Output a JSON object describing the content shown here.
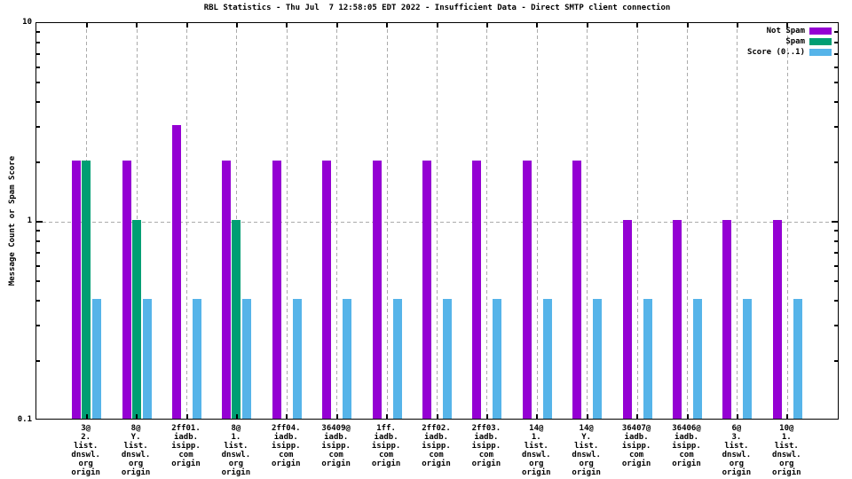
{
  "title": "RBL Statistics - Thu Jul  7 12:58:05 EDT 2022 - Insufficient Data - Direct SMTP client connection",
  "ylabel": "Message Count or Spam Score",
  "legend": [
    {
      "label": "Not Spam",
      "color": "#9400d3"
    },
    {
      "label": "Spam",
      "color": "#009e73"
    },
    {
      "label": "Score (0..1)",
      "color": "#56b4e9"
    }
  ],
  "chart_data": {
    "type": "bar",
    "yscale": "log",
    "ylim": [
      0.1,
      10
    ],
    "ytick_labels": [
      "10",
      "1",
      "0.1"
    ],
    "grid": true,
    "legend_position": "top-right",
    "categories": [
      [
        "3@",
        "2.",
        "list.",
        "dnswl.",
        "org",
        "origin"
      ],
      [
        "8@",
        "Y.",
        "list.",
        "dnswl.",
        "org",
        "origin"
      ],
      [
        "2ff01.",
        "iadb.",
        "isipp.",
        "com",
        "origin"
      ],
      [
        "8@",
        "1.",
        "list.",
        "dnswl.",
        "org",
        "origin"
      ],
      [
        "2ff04.",
        "iadb.",
        "isipp.",
        "com",
        "origin"
      ],
      [
        "36409@",
        "iadb.",
        "isipp.",
        "com",
        "origin"
      ],
      [
        "1ff.",
        "iadb.",
        "isipp.",
        "com",
        "origin"
      ],
      [
        "2ff02.",
        "iadb.",
        "isipp.",
        "com",
        "origin"
      ],
      [
        "2ff03.",
        "iadb.",
        "isipp.",
        "com",
        "origin"
      ],
      [
        "14@",
        "1.",
        "list.",
        "dnswl.",
        "org",
        "origin"
      ],
      [
        "14@",
        "Y.",
        "list.",
        "dnswl.",
        "org",
        "origin"
      ],
      [
        "36407@",
        "iadb.",
        "isipp.",
        "com",
        "origin"
      ],
      [
        "36406@",
        "iadb.",
        "isipp.",
        "com",
        "origin"
      ],
      [
        "6@",
        "3.",
        "list.",
        "dnswl.",
        "org",
        "origin"
      ],
      [
        "10@",
        "1.",
        "list.",
        "dnswl.",
        "org",
        "origin"
      ]
    ],
    "series": [
      {
        "name": "Not Spam",
        "color": "#9400d3",
        "values": [
          2,
          2,
          3,
          2,
          2,
          2,
          2,
          2,
          2,
          2,
          2,
          1,
          1,
          1,
          1
        ]
      },
      {
        "name": "Spam",
        "color": "#009e73",
        "values": [
          2,
          1,
          null,
          1,
          null,
          null,
          null,
          null,
          null,
          null,
          null,
          null,
          null,
          null,
          null
        ]
      },
      {
        "name": "Score (0..1)",
        "color": "#56b4e9",
        "values": [
          0.4,
          0.4,
          0.4,
          0.4,
          0.4,
          0.4,
          0.4,
          0.4,
          0.4,
          0.4,
          0.4,
          0.4,
          0.4,
          0.4,
          0.4
        ]
      }
    ]
  }
}
